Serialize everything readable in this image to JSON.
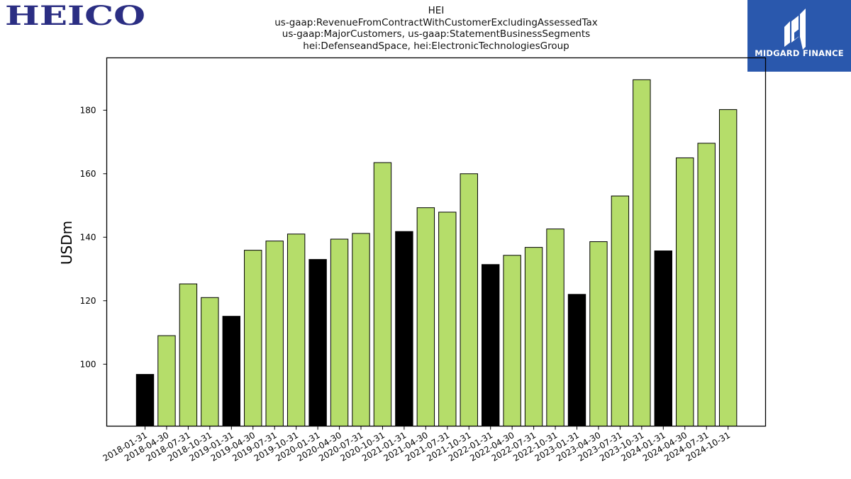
{
  "logos": {
    "left_brand": "HEICO",
    "right_brand": "MIDGARD FINANCE"
  },
  "colors": {
    "heico_navy": "#2b2e83",
    "midgard_blue": "#2a58ad",
    "bar_green": "#b5dd6a",
    "bar_black": "#000000"
  },
  "chart_data": {
    "type": "bar",
    "title_lines": [
      "HEI",
      "us-gaap:RevenueFromContractWithCustomerExcludingAssessedTax",
      "us-gaap:MajorCustomers, us-gaap:StatementBusinessSegments",
      "hei:DefenseandSpace, hei:ElectronicTechnologiesGroup"
    ],
    "xlabel": "",
    "ylabel": "USDm",
    "ylim": [
      80.5,
      196.5
    ],
    "yticks": [
      100,
      120,
      140,
      160,
      180
    ],
    "grid": false,
    "legend": "none",
    "categories": [
      "2018-01-31",
      "2018-04-30",
      "2018-07-31",
      "2018-10-31",
      "2019-01-31",
      "2019-04-30",
      "2019-07-31",
      "2019-10-31",
      "2020-01-31",
      "2020-04-30",
      "2020-07-31",
      "2020-10-31",
      "2021-01-31",
      "2021-04-30",
      "2021-07-31",
      "2021-10-31",
      "2022-01-31",
      "2022-04-30",
      "2022-07-31",
      "2022-10-31",
      "2023-01-31",
      "2023-04-30",
      "2023-07-31",
      "2023-10-31",
      "2024-01-31",
      "2024-04-30",
      "2024-07-31",
      "2024-10-31"
    ],
    "values": [
      96.8,
      109.0,
      125.3,
      121.0,
      115.1,
      135.9,
      138.8,
      141.0,
      133.0,
      139.4,
      141.2,
      163.5,
      141.8,
      149.3,
      147.9,
      160.0,
      131.4,
      134.3,
      136.8,
      142.6,
      122.0,
      138.6,
      153.0,
      189.6,
      135.7,
      165.0,
      169.6,
      180.2
    ],
    "bar_colors": [
      "#000000",
      "#b5dd6a",
      "#b5dd6a",
      "#b5dd6a",
      "#000000",
      "#b5dd6a",
      "#b5dd6a",
      "#b5dd6a",
      "#000000",
      "#b5dd6a",
      "#b5dd6a",
      "#b5dd6a",
      "#000000",
      "#b5dd6a",
      "#b5dd6a",
      "#b5dd6a",
      "#000000",
      "#b5dd6a",
      "#b5dd6a",
      "#b5dd6a",
      "#000000",
      "#b5dd6a",
      "#b5dd6a",
      "#b5dd6a",
      "#000000",
      "#b5dd6a",
      "#b5dd6a",
      "#b5dd6a"
    ]
  }
}
